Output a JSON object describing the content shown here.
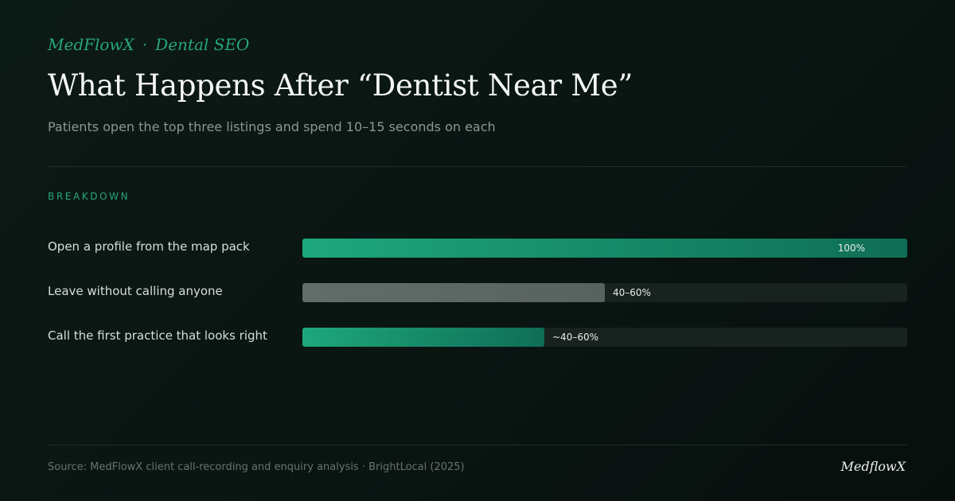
{
  "kicker": {
    "brand": "MedFlowX",
    "separator": "·",
    "topic": "Dental SEO"
  },
  "header": {
    "title": "What Happens After “Dentist Near Me”",
    "subtitle": "Patients open the top three listings and spend 10–15 seconds on each"
  },
  "section_label": "BREAKDOWN",
  "chart_data": {
    "type": "bar",
    "orientation": "horizontal",
    "xlim": [
      0,
      100
    ],
    "categories": [
      "Open a profile from the map pack",
      "Leave without calling anyone",
      "Call the first practice that looks right"
    ],
    "values": [
      100,
      50,
      40
    ],
    "value_labels": [
      "100%",
      "40–60%",
      "~40–60%"
    ],
    "colors": [
      "#1ea77c",
      "#626c68",
      "#1ea77c"
    ],
    "label_inside": [
      true,
      false,
      false
    ],
    "grid": false
  },
  "footer": {
    "source": "Source: MedFlowX client call-recording and enquiry analysis · BrightLocal (2025)",
    "brand": "MedflowX"
  }
}
